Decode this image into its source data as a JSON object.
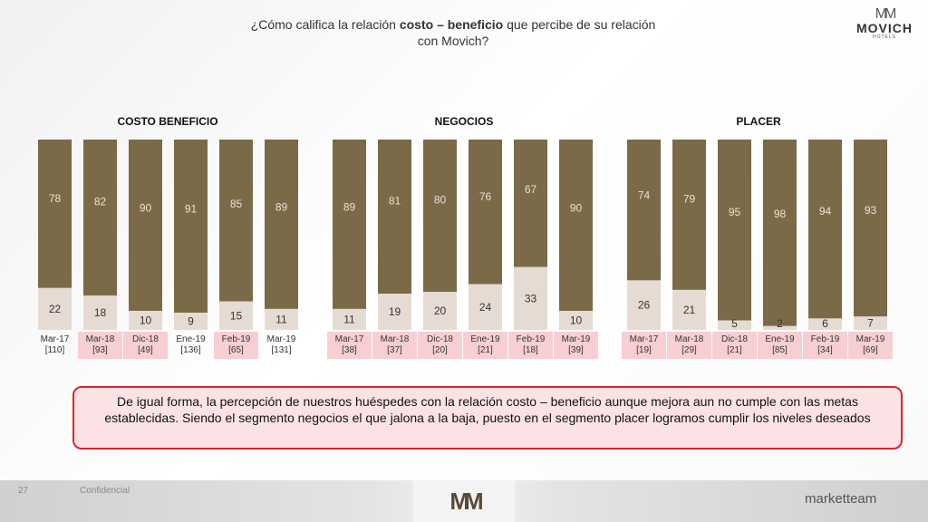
{
  "header": {
    "title_pre": "¿Cómo califica la relación ",
    "title_bold": "costo – beneficio",
    "title_post": " que percibe de su relación",
    "title_line2": "con Movich?"
  },
  "logo": {
    "mark": "MM",
    "name": "MOVICH",
    "sub": "HOTELS"
  },
  "colors": {
    "top": "#7a6a48",
    "bottom": "#e6dbd3",
    "highlight": "#f7cfd3",
    "border": "#d9262b"
  },
  "chart_data": [
    {
      "type": "bar",
      "title": "COSTO BENEFICIO",
      "categories": [
        "Mar-17",
        "Mar-18",
        "Dic-18",
        "Ene-19",
        "Feb-19",
        "Mar-19"
      ],
      "bases": [
        "[110]",
        "[93]",
        "[49]",
        "[136]",
        "[65]",
        "[131]"
      ],
      "highlight": [
        false,
        true,
        true,
        false,
        true,
        false
      ],
      "series": [
        {
          "values": [
            22,
            18,
            10,
            9,
            15,
            11
          ]
        },
        {
          "values": [
            78,
            82,
            90,
            91,
            85,
            89
          ]
        }
      ],
      "ylim": [
        0,
        100
      ]
    },
    {
      "type": "bar",
      "title": "NEGOCIOS",
      "categories": [
        "Mar-17",
        "Mar-18",
        "Dic-18",
        "Ene-19",
        "Feb-19",
        "Mar-19"
      ],
      "bases": [
        "[38]",
        "[37]",
        "[20]",
        "[21]",
        "[18]",
        "[39]"
      ],
      "highlight": [
        true,
        true,
        true,
        true,
        true,
        true
      ],
      "series": [
        {
          "values": [
            11,
            19,
            20,
            24,
            33,
            10
          ]
        },
        {
          "values": [
            89,
            81,
            80,
            76,
            67,
            90
          ]
        }
      ],
      "ylim": [
        0,
        100
      ]
    },
    {
      "type": "bar",
      "title": "PLACER",
      "categories": [
        "Mar-17",
        "Mar-18",
        "Dic-18",
        "Ene-19",
        "Feb-19",
        "Mar-19"
      ],
      "bases": [
        "[19]",
        "[29]",
        "[21]",
        "[85]",
        "[34]",
        "[69]"
      ],
      "highlight": [
        true,
        true,
        true,
        true,
        true,
        true
      ],
      "series": [
        {
          "values": [
            26,
            21,
            5,
            2,
            6,
            7
          ]
        },
        {
          "values": [
            74,
            79,
            95,
            98,
            94,
            93
          ]
        }
      ],
      "ylim": [
        0,
        100
      ]
    }
  ],
  "note": {
    "text": "De igual forma, la percepción de nuestros huéspedes con la relación costo – beneficio aunque mejora aun no cumple con las metas establecidas. Siendo el segmento negocios el que jalona a la baja, puesto en el segmento placer logramos cumplir los niveles deseados"
  },
  "footer": {
    "page": "27",
    "confidential": "Confidencial",
    "center_mark": "MM",
    "brand": "marketteam"
  }
}
